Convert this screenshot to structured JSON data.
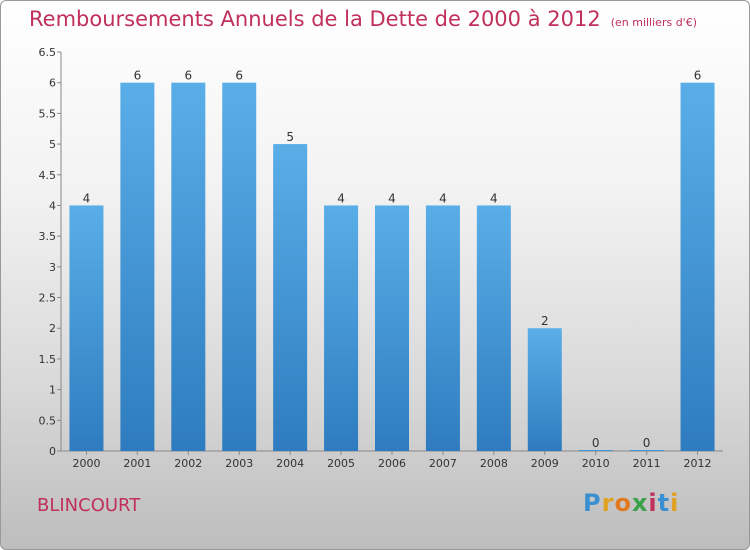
{
  "header": {
    "title": "Remboursements Annuels de la Dette de 2000 à 2012",
    "unit": "(en milliers d'€)"
  },
  "footer": {
    "commune": "BLINCOURT",
    "brand": [
      "P",
      "r",
      "o",
      "x",
      "i",
      "t",
      "i"
    ]
  },
  "colors": {
    "title": "#c0305a",
    "bar_top": "#5aaee8",
    "bar_bottom": "#2e7cbf"
  },
  "chart_data": {
    "type": "bar",
    "title": "Remboursements Annuels de la Dette de 2000 à 2012",
    "xlabel": "",
    "ylabel": "",
    "categories": [
      "2000",
      "2001",
      "2002",
      "2003",
      "2004",
      "2005",
      "2006",
      "2007",
      "2008",
      "2009",
      "2010",
      "2011",
      "2012"
    ],
    "values": [
      4,
      6,
      6,
      6,
      5,
      4,
      4,
      4,
      4,
      2,
      0,
      0,
      6
    ],
    "value_labels": [
      "4",
      "6",
      "6",
      "6",
      "5",
      "4",
      "4",
      "4",
      "4",
      "2",
      "0",
      "0",
      "6"
    ],
    "yticks": [
      "0",
      "0.5",
      "1",
      "1.5",
      "2",
      "2.5",
      "3",
      "3.5",
      "4",
      "4.5",
      "5",
      "5.5",
      "6",
      "6.5"
    ],
    "ylim": [
      0,
      6.5
    ],
    "grid": false
  }
}
